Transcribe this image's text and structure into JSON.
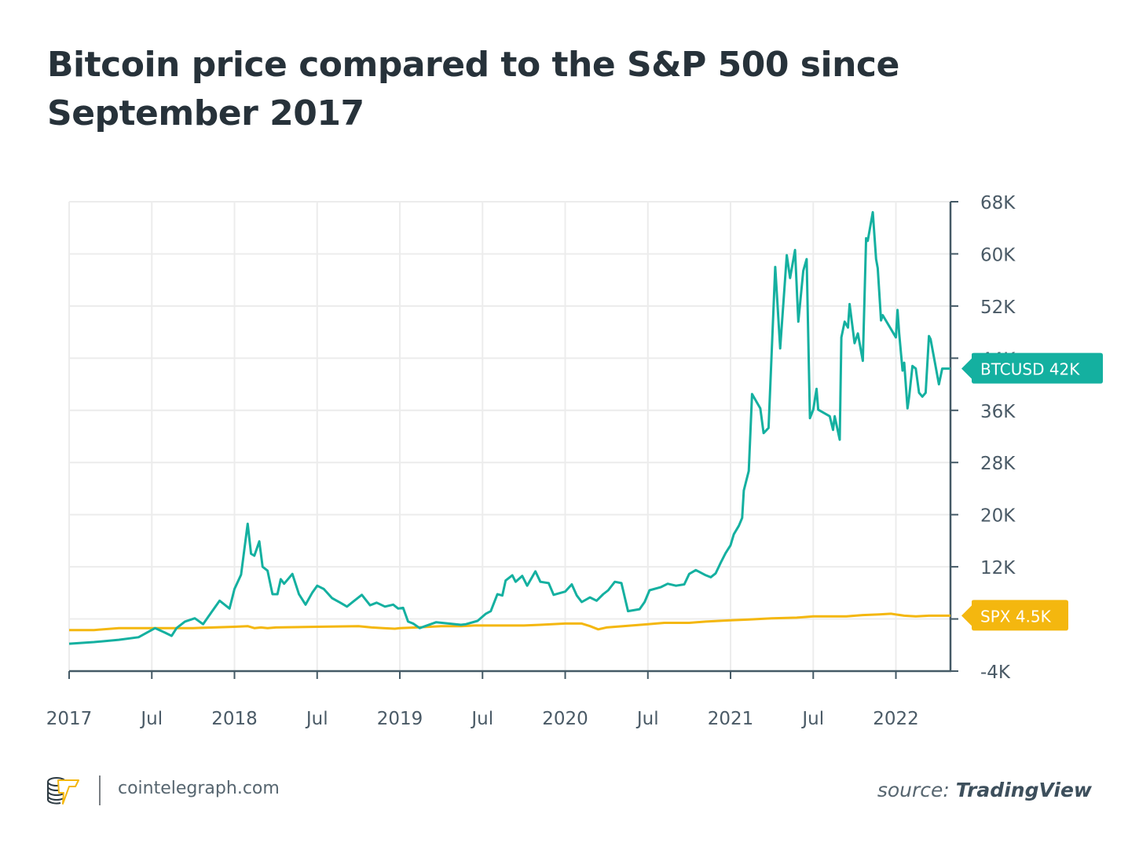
{
  "title": "Bitcoin price compared to the S&P 500 since September 2017",
  "footer": {
    "site": "cointelegraph.com",
    "source_prefix": "source:",
    "source_name": "TradingView",
    "logo_icon": "cointelegraph-logo-icon"
  },
  "colors": {
    "btc": "#14b0a0",
    "spx": "#f4b70f",
    "axis": "#455a66",
    "grid": "#ececec",
    "text": "#27323a"
  },
  "chart_data": {
    "type": "line",
    "title": "Bitcoin price compared to the S&P 500 since September 2017",
    "xlabel": "",
    "ylabel": "",
    "x_unit": "decimal year",
    "xlim": [
      2017.0,
      2022.33
    ],
    "ylim": [
      -4,
      68
    ],
    "y_unit": "thousand USD",
    "grid": true,
    "y_axis_side": "right",
    "x_ticks": [
      {
        "x": 2017.0,
        "label": "2017"
      },
      {
        "x": 2017.5,
        "label": "Jul"
      },
      {
        "x": 2018.0,
        "label": "2018"
      },
      {
        "x": 2018.5,
        "label": "Jul"
      },
      {
        "x": 2019.0,
        "label": "2019"
      },
      {
        "x": 2019.5,
        "label": "Jul"
      },
      {
        "x": 2020.0,
        "label": "2020"
      },
      {
        "x": 2020.5,
        "label": "Jul"
      },
      {
        "x": 2021.0,
        "label": "2021"
      },
      {
        "x": 2021.5,
        "label": "Jul"
      },
      {
        "x": 2022.0,
        "label": "2022"
      }
    ],
    "y_ticks": [
      {
        "y": 68,
        "label": "68K"
      },
      {
        "y": 60,
        "label": "60K"
      },
      {
        "y": 52,
        "label": "52K"
      },
      {
        "y": 44,
        "label": "44K"
      },
      {
        "y": 36,
        "label": "36K"
      },
      {
        "y": 28,
        "label": "28K"
      },
      {
        "y": 20,
        "label": "20K"
      },
      {
        "y": 12,
        "label": "12K"
      },
      {
        "y": 4,
        "label": "4K"
      },
      {
        "y": -4,
        "label": "-4K"
      }
    ],
    "series": [
      {
        "name": "BTCUSD",
        "last_label": "BTCUSD 42K",
        "color": "#14b0a0",
        "x": [
          2017.0,
          2017.15,
          2017.3,
          2017.42,
          2017.52,
          2017.58,
          2017.62,
          2017.65,
          2017.7,
          2017.76,
          2017.81,
          2017.86,
          2017.91,
          2017.97,
          2018.0,
          2018.04,
          2018.08,
          2018.1,
          2018.12,
          2018.15,
          2018.17,
          2018.2,
          2018.23,
          2018.26,
          2018.28,
          2018.3,
          2018.35,
          2018.39,
          2018.43,
          2018.47,
          2018.5,
          2018.54,
          2018.59,
          2018.64,
          2018.68,
          2018.72,
          2018.77,
          2018.82,
          2018.86,
          2018.91,
          2018.96,
          2018.99,
          2019.02,
          2019.05,
          2019.08,
          2019.12,
          2019.22,
          2019.37,
          2019.4,
          2019.47,
          2019.52,
          2019.55,
          2019.59,
          2019.62,
          2019.64,
          2019.68,
          2019.7,
          2019.74,
          2019.77,
          2019.82,
          2019.85,
          2019.9,
          2019.93,
          2020.0,
          2020.04,
          2020.07,
          2020.1,
          2020.15,
          2020.19,
          2020.23,
          2020.26,
          2020.3,
          2020.34,
          2020.38,
          2020.45,
          2020.48,
          2020.51,
          2020.58,
          2020.62,
          2020.67,
          2020.72,
          2020.75,
          2020.79,
          2020.85,
          2020.88,
          2020.91,
          2020.94,
          2020.97,
          2021.0,
          2021.02,
          2021.05,
          2021.07,
          2021.08,
          2021.11,
          2021.13,
          2021.18,
          2021.2,
          2021.23,
          2021.27,
          2021.3,
          2021.34,
          2021.36,
          2021.39,
          2021.41,
          2021.44,
          2021.46,
          2021.48,
          2021.5,
          2021.52,
          2021.53,
          2021.6,
          2021.62,
          2021.63,
          2021.66,
          2021.67,
          2021.69,
          2021.71,
          2021.72,
          2021.75,
          2021.77,
          2021.8,
          2021.82,
          2021.83,
          2021.86,
          2021.88,
          2021.89,
          2021.91,
          2021.92,
          2022.0,
          2022.01,
          2022.02,
          2022.04,
          2022.05,
          2022.07,
          2022.08,
          2022.1,
          2022.12,
          2022.14,
          2022.16,
          2022.18,
          2022.2,
          2022.21,
          2022.26,
          2022.28,
          2022.33
        ],
        "y": [
          0.2,
          0.45,
          0.8,
          1.2,
          2.6,
          1.9,
          1.4,
          2.6,
          3.6,
          4.1,
          3.2,
          5.0,
          6.8,
          5.6,
          8.6,
          10.8,
          18.6,
          14.0,
          13.7,
          15.9,
          12.0,
          11.4,
          7.8,
          7.8,
          10.1,
          9.4,
          10.9,
          7.8,
          6.2,
          8.0,
          9.1,
          8.6,
          7.2,
          6.5,
          5.9,
          6.7,
          7.7,
          6.1,
          6.5,
          5.9,
          6.2,
          5.6,
          5.7,
          3.6,
          3.3,
          2.6,
          3.5,
          3.1,
          3.2,
          3.7,
          4.8,
          5.2,
          7.8,
          7.6,
          9.9,
          10.7,
          9.7,
          10.6,
          9.1,
          11.3,
          9.7,
          9.5,
          7.7,
          8.2,
          9.3,
          7.6,
          6.6,
          7.3,
          6.8,
          7.8,
          8.4,
          9.7,
          9.5,
          5.2,
          5.5,
          6.6,
          8.4,
          8.9,
          9.4,
          9.1,
          9.3,
          10.9,
          11.5,
          10.7,
          10.4,
          11.0,
          12.6,
          14.1,
          15.3,
          17.0,
          18.3,
          19.5,
          23.7,
          26.7,
          38.5,
          36.3,
          32.5,
          33.3,
          58.0,
          45.5,
          59.8,
          56.3,
          60.6,
          49.6,
          57.4,
          59.2,
          34.8,
          36.1,
          39.3,
          36.1,
          35.1,
          33.0,
          35.1,
          31.5,
          47.2,
          49.6,
          48.7,
          52.3,
          46.3,
          47.8,
          43.6,
          62.4,
          62.0,
          66.4,
          59.2,
          57.8,
          49.8,
          50.6,
          47.2,
          51.4,
          47.8,
          42.1,
          43.3,
          36.3,
          38.1,
          42.8,
          42.4,
          38.7,
          38.1,
          38.7,
          47.4,
          46.9,
          40.0,
          42.4,
          42.4
        ]
      },
      {
        "name": "SPX",
        "last_label": "SPX 4.5K",
        "color": "#f4b70f",
        "x": [
          2017.0,
          2017.15,
          2017.3,
          2017.5,
          2017.75,
          2018.0,
          2018.08,
          2018.12,
          2018.16,
          2018.2,
          2018.25,
          2018.5,
          2018.75,
          2018.83,
          2018.9,
          2018.97,
          2019.0,
          2019.1,
          2019.25,
          2019.37,
          2019.45,
          2019.6,
          2019.75,
          2019.85,
          2020.0,
          2020.1,
          2020.15,
          2020.2,
          2020.25,
          2020.35,
          2020.5,
          2020.6,
          2020.75,
          2020.85,
          2021.0,
          2021.1,
          2021.25,
          2021.4,
          2021.5,
          2021.6,
          2021.7,
          2021.8,
          2021.9,
          2021.97,
          2022.05,
          2022.12,
          2022.2,
          2022.33
        ],
        "y": [
          2.3,
          2.3,
          2.6,
          2.6,
          2.6,
          2.8,
          2.9,
          2.6,
          2.7,
          2.6,
          2.7,
          2.8,
          2.9,
          2.7,
          2.6,
          2.5,
          2.6,
          2.7,
          2.9,
          2.9,
          3.0,
          3.0,
          3.0,
          3.1,
          3.3,
          3.3,
          2.9,
          2.4,
          2.7,
          2.9,
          3.2,
          3.4,
          3.4,
          3.6,
          3.8,
          3.9,
          4.1,
          4.2,
          4.4,
          4.4,
          4.4,
          4.6,
          4.7,
          4.8,
          4.5,
          4.4,
          4.5,
          4.5
        ]
      }
    ]
  }
}
